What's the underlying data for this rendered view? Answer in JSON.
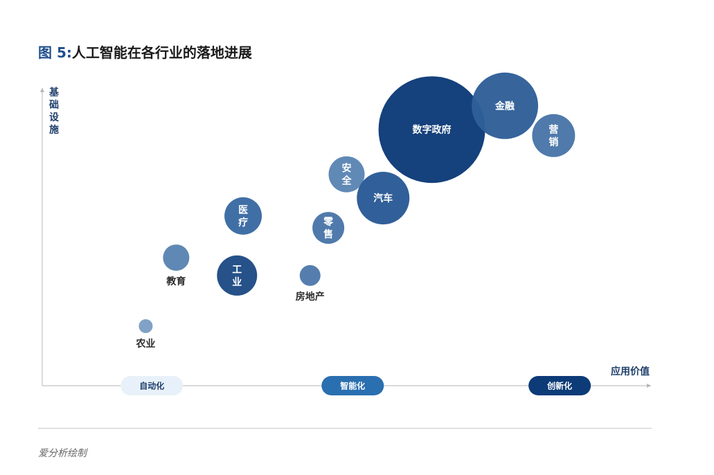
{
  "figure": {
    "number": "图 5:",
    "title": "人工智能在各行业的落地进展",
    "source": "爱分析绘制"
  },
  "chart_data": {
    "type": "scatter",
    "title": "人工智能在各行业的落地进展",
    "ylabel": "基础设施",
    "xlabel": "应用价值",
    "xlim": [
      0,
      100
    ],
    "ylim": [
      0,
      100
    ],
    "grid": false,
    "stages": [
      {
        "label": "自动化",
        "x": 18,
        "color": "#e8f1f9",
        "text_color": "#1f3f6b"
      },
      {
        "label": "智能化",
        "x": 51,
        "color": "#2a6fb0",
        "text_color": "#ffffff"
      },
      {
        "label": "创新化",
        "x": 85,
        "color": "#0d3b78",
        "text_color": "#ffffff"
      }
    ],
    "points": [
      {
        "name": "农业",
        "x": 17,
        "y": 20,
        "size": 10,
        "color": "#7d9fc4",
        "label_pos": "below"
      },
      {
        "name": "教育",
        "x": 22,
        "y": 43,
        "size": 19,
        "color": "#5a84b2",
        "label_pos": "below"
      },
      {
        "name": "工业",
        "x": 32,
        "y": 37,
        "size": 29,
        "color": "#1f4b85",
        "label_pos": "inside"
      },
      {
        "name": "医疗",
        "x": 33,
        "y": 57,
        "size": 27,
        "color": "#3a6aa3",
        "label_pos": "inside"
      },
      {
        "name": "房地产",
        "x": 44,
        "y": 37,
        "size": 15,
        "color": "#4f7aab",
        "label_pos": "below"
      },
      {
        "name": "零售",
        "x": 47,
        "y": 53,
        "size": 23,
        "color": "#4a76a8",
        "label_pos": "inside"
      },
      {
        "name": "安全",
        "x": 50,
        "y": 71,
        "size": 26,
        "color": "#5b85b4",
        "label_pos": "inside"
      },
      {
        "name": "汽车",
        "x": 56,
        "y": 63,
        "size": 38,
        "color": "#2a5a96",
        "label_pos": "inside"
      },
      {
        "name": "数字政府",
        "x": 64,
        "y": 86,
        "size": 77,
        "color": "#0d3b78",
        "label_pos": "inside"
      },
      {
        "name": "金融",
        "x": 76,
        "y": 94,
        "size": 48,
        "color": "#2f5f98",
        "label_pos": "inside"
      },
      {
        "name": "营销",
        "x": 84,
        "y": 84,
        "size": 31,
        "color": "#4a76a8",
        "label_pos": "inside"
      }
    ]
  }
}
